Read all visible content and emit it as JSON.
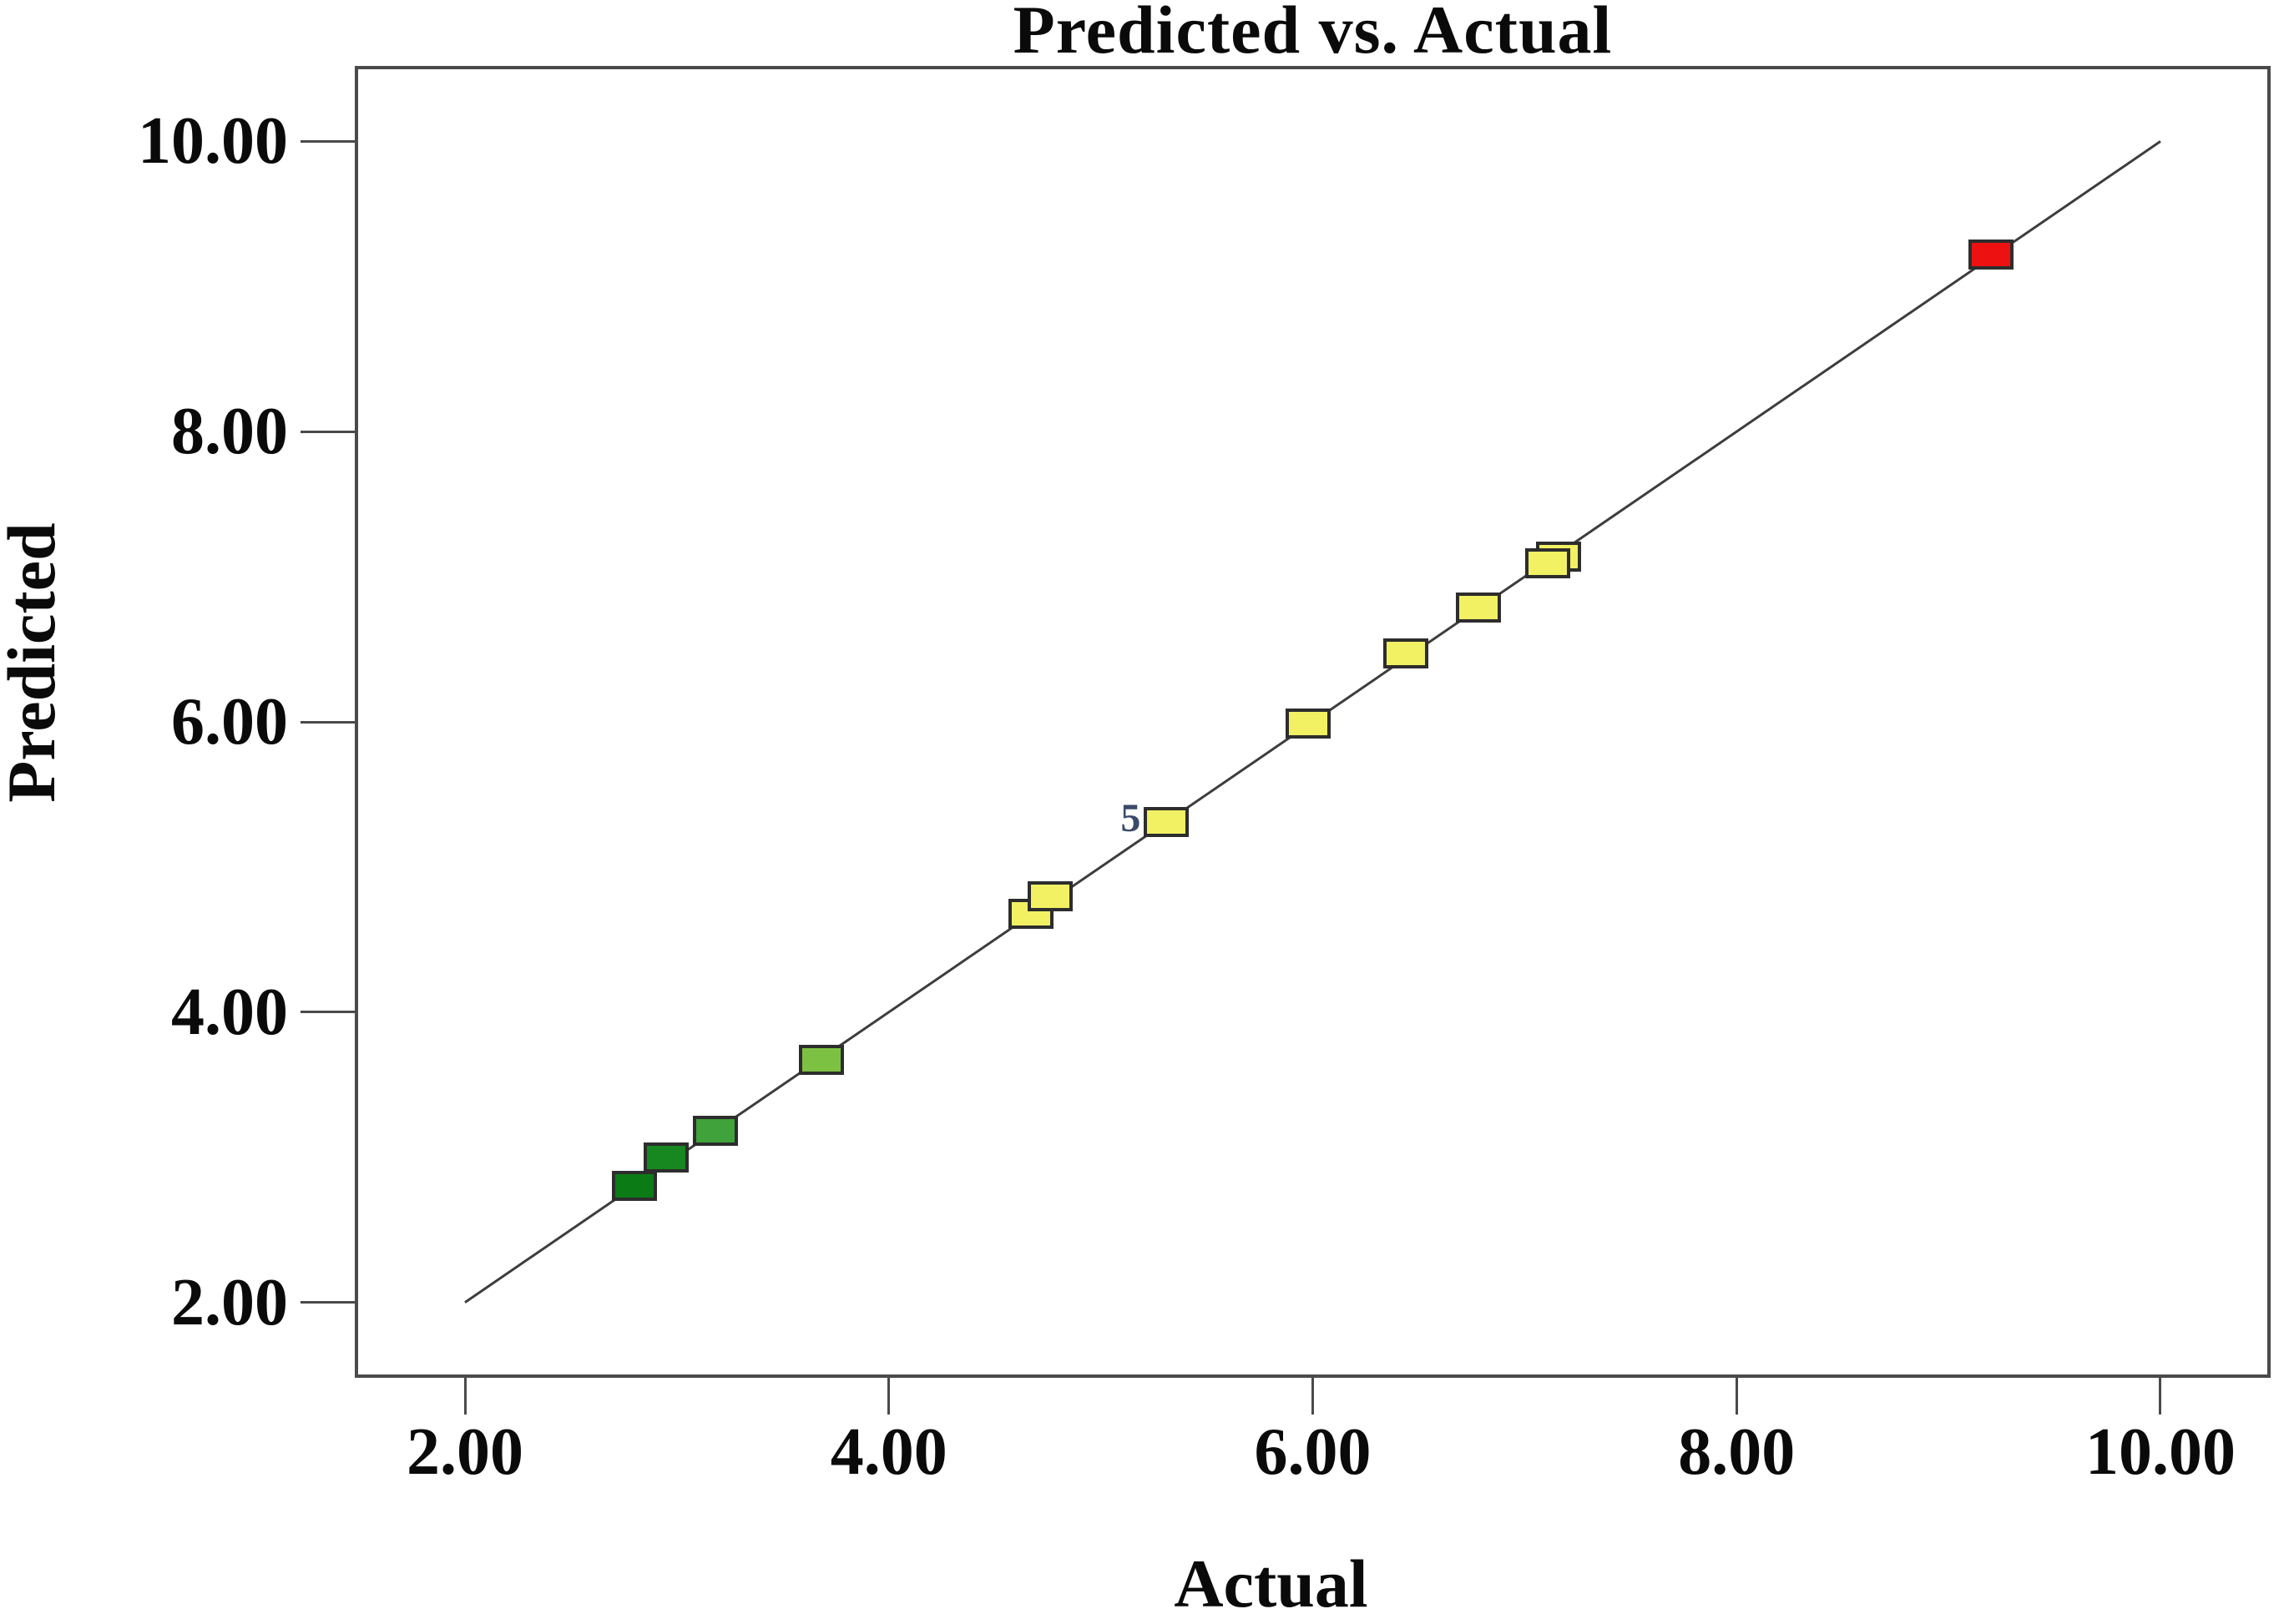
{
  "title": "Predicted vs. Actual",
  "chart_data": {
    "type": "scatter",
    "title": "Predicted vs. Actual",
    "xlabel": "Actual",
    "ylabel": "Predicted",
    "xlim": [
      1.48,
      10.52
    ],
    "ylim": [
      1.48,
      10.52
    ],
    "grid": false,
    "legend": "none",
    "x_ticks": [
      {
        "value": 2,
        "label": "2.00"
      },
      {
        "value": 4,
        "label": "4.00"
      },
      {
        "value": 6,
        "label": "6.00"
      },
      {
        "value": 8,
        "label": "8.00"
      },
      {
        "value": 10,
        "label": "10.00"
      }
    ],
    "y_ticks": [
      {
        "value": 2,
        "label": "2.00"
      },
      {
        "value": 4,
        "label": "4.00"
      },
      {
        "value": 6,
        "label": "6.00"
      },
      {
        "value": 8,
        "label": "8.00"
      },
      {
        "value": 10,
        "label": "10.00"
      }
    ],
    "identity_line": {
      "x1": 2.0,
      "y1": 2.0,
      "x2": 10.0,
      "y2": 10.0,
      "color": "#3d3d3d"
    },
    "points": [
      {
        "actual": 2.8,
        "predicted": 2.8,
        "color": "#0b7c15"
      },
      {
        "actual": 2.95,
        "predicted": 3.0,
        "color": "#17871f"
      },
      {
        "actual": 3.18,
        "predicted": 3.18,
        "color": "#3fa23a"
      },
      {
        "actual": 3.68,
        "predicted": 3.67,
        "color": "#7dc142"
      },
      {
        "actual": 4.67,
        "predicted": 4.68,
        "color": "#f1f163"
      },
      {
        "actual": 4.76,
        "predicted": 4.8,
        "color": "#f1f163"
      },
      {
        "actual": 5.31,
        "predicted": 5.31,
        "color": "#f1f163",
        "count_label": "5"
      },
      {
        "actual": 5.98,
        "predicted": 5.99,
        "color": "#f1f163"
      },
      {
        "actual": 6.44,
        "predicted": 6.47,
        "color": "#f1f163"
      },
      {
        "actual": 6.78,
        "predicted": 6.79,
        "color": "#f1f163"
      },
      {
        "actual": 7.16,
        "predicted": 7.14,
        "color": "#f1f163"
      },
      {
        "actual": 7.11,
        "predicted": 7.09,
        "color": "#f1f163"
      },
      {
        "actual": 9.2,
        "predicted": 9.22,
        "color": "#ee1111"
      }
    ],
    "style": {
      "axis_color": "#4a4a4a",
      "marker_border_color": "#2d2d2d",
      "count_label_color": "#3b4a6b",
      "text_color": "#0a0a0a"
    }
  }
}
